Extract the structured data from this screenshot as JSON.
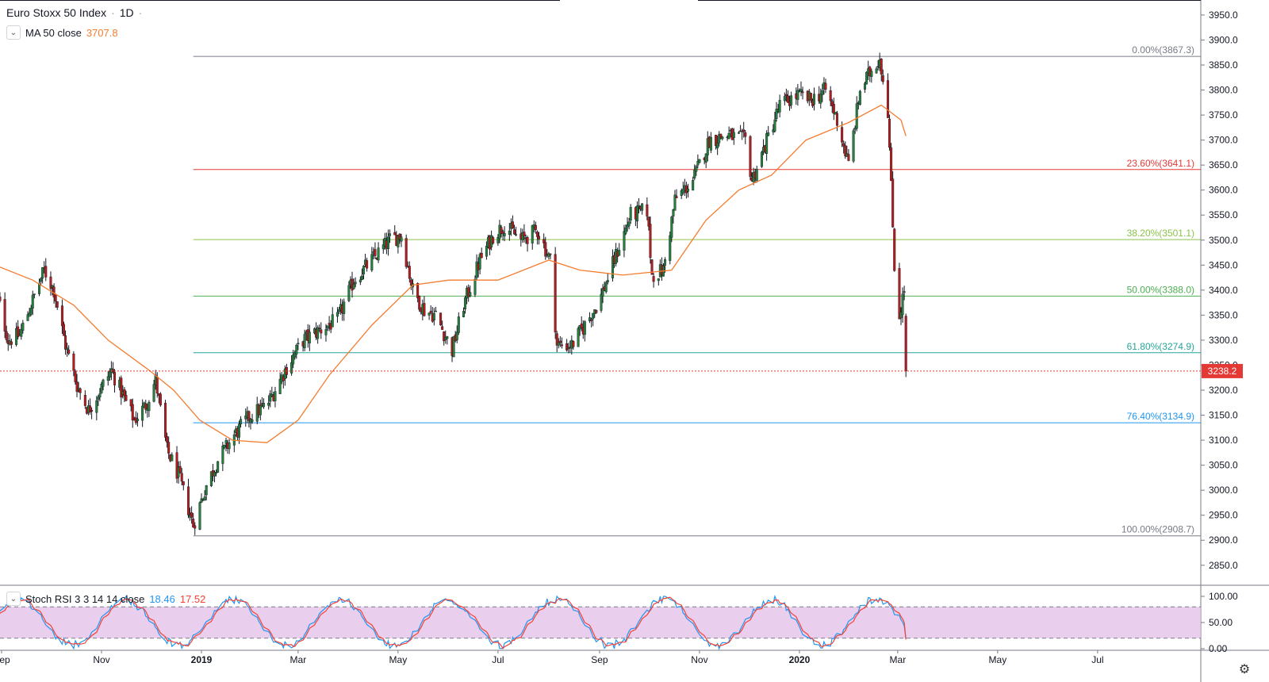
{
  "header": {
    "symbol": "Euro Stoxx 50 Index",
    "separator": "·",
    "interval": "1D",
    "collapse_icon": "chevron-down-icon"
  },
  "ma_legend": {
    "label": "MA 50 close",
    "value": "3707.8",
    "color": "#f57c2f"
  },
  "rsi_legend": {
    "label": "Stoch RSI 3 3 14 14 close",
    "k_value": "18.46",
    "d_value": "17.52",
    "k_color": "#2196f3",
    "d_color": "#f44336"
  },
  "last_price": {
    "value": "3238.2",
    "color": "#e53935"
  },
  "settings_icon": "gear-icon",
  "chart_data": {
    "type": "candlestick",
    "price_axis": {
      "ylim": [
        2810,
        3980
      ],
      "ticks": [
        2850,
        2900,
        2950,
        3000,
        3050,
        3100,
        3150,
        3200,
        3250,
        3300,
        3350,
        3400,
        3450,
        3500,
        3550,
        3600,
        3650,
        3700,
        3750,
        3800,
        3850,
        3900,
        3950
      ],
      "tick_labels": [
        "2850.0",
        "2900.0",
        "2950.0",
        "3000.0",
        "3050.0",
        "3100.0",
        "3150.0",
        "3200.0",
        "3250.0",
        "3300.0",
        "3350.0",
        "3400.0",
        "3450.0",
        "3500.0",
        "3550.0",
        "3600.0",
        "3650.0",
        "3700.0",
        "3750.0",
        "3800.0",
        "3850.0",
        "3900.0",
        "3950.0"
      ]
    },
    "time_axis": {
      "labels": [
        "Sep",
        "Nov",
        "2019",
        "Mar",
        "May",
        "Jul",
        "Sep",
        "Nov",
        "2020",
        "Mar",
        "May",
        "Jul"
      ],
      "dates": [
        "2018-09-01",
        "2018-11-01",
        "2019-01-01",
        "2019-03-01",
        "2019-05-01",
        "2019-07-01",
        "2019-09-01",
        "2019-11-01",
        "2020-01-01",
        "2020-03-01",
        "2020-05-01",
        "2020-07-01"
      ],
      "bold": [
        false,
        false,
        true,
        false,
        false,
        false,
        false,
        false,
        true,
        false,
        false,
        false
      ]
    },
    "price_path": [
      {
        "date": "2018-08-28",
        "price": 3410
      },
      {
        "date": "2018-09-05",
        "price": 3300
      },
      {
        "date": "2018-09-12",
        "price": 3310
      },
      {
        "date": "2018-09-20",
        "price": 3380
      },
      {
        "date": "2018-09-27",
        "price": 3440
      },
      {
        "date": "2018-10-03",
        "price": 3400
      },
      {
        "date": "2018-10-10",
        "price": 3290
      },
      {
        "date": "2018-10-17",
        "price": 3210
      },
      {
        "date": "2018-10-24",
        "price": 3160
      },
      {
        "date": "2018-10-31",
        "price": 3200
      },
      {
        "date": "2018-11-07",
        "price": 3240
      },
      {
        "date": "2018-11-14",
        "price": 3190
      },
      {
        "date": "2018-11-21",
        "price": 3140
      },
      {
        "date": "2018-11-28",
        "price": 3170
      },
      {
        "date": "2018-12-04",
        "price": 3220
      },
      {
        "date": "2018-12-11",
        "price": 3080
      },
      {
        "date": "2018-12-18",
        "price": 3030
      },
      {
        "date": "2018-12-27",
        "price": 2930
      },
      {
        "date": "2019-01-04",
        "price": 3010
      },
      {
        "date": "2019-01-11",
        "price": 3060
      },
      {
        "date": "2019-01-21",
        "price": 3110
      },
      {
        "date": "2019-01-31",
        "price": 3150
      },
      {
        "date": "2019-02-10",
        "price": 3170
      },
      {
        "date": "2019-02-21",
        "price": 3240
      },
      {
        "date": "2019-03-04",
        "price": 3300
      },
      {
        "date": "2019-03-14",
        "price": 3320
      },
      {
        "date": "2019-03-25",
        "price": 3340
      },
      {
        "date": "2019-04-04",
        "price": 3420
      },
      {
        "date": "2019-04-15",
        "price": 3460
      },
      {
        "date": "2019-04-26",
        "price": 3500
      },
      {
        "date": "2019-05-03",
        "price": 3510
      },
      {
        "date": "2019-05-10",
        "price": 3400
      },
      {
        "date": "2019-05-17",
        "price": 3360
      },
      {
        "date": "2019-05-24",
        "price": 3350
      },
      {
        "date": "2019-06-03",
        "price": 3280
      },
      {
        "date": "2019-06-10",
        "price": 3370
      },
      {
        "date": "2019-06-20",
        "price": 3460
      },
      {
        "date": "2019-06-28",
        "price": 3510
      },
      {
        "date": "2019-07-05",
        "price": 3530
      },
      {
        "date": "2019-07-15",
        "price": 3500
      },
      {
        "date": "2019-07-25",
        "price": 3520
      },
      {
        "date": "2019-08-02",
        "price": 3460
      },
      {
        "date": "2019-08-06",
        "price": 3290
      },
      {
        "date": "2019-08-15",
        "price": 3290
      },
      {
        "date": "2019-08-23",
        "price": 3330
      },
      {
        "date": "2019-09-01",
        "price": 3380
      },
      {
        "date": "2019-09-10",
        "price": 3460
      },
      {
        "date": "2019-09-20",
        "price": 3550
      },
      {
        "date": "2019-09-30",
        "price": 3560
      },
      {
        "date": "2019-10-03",
        "price": 3430
      },
      {
        "date": "2019-10-10",
        "price": 3440
      },
      {
        "date": "2019-10-17",
        "price": 3580
      },
      {
        "date": "2019-10-28",
        "price": 3620
      },
      {
        "date": "2019-11-07",
        "price": 3700
      },
      {
        "date": "2019-11-18",
        "price": 3710
      },
      {
        "date": "2019-11-29",
        "price": 3700
      },
      {
        "date": "2019-12-03",
        "price": 3620
      },
      {
        "date": "2019-12-10",
        "price": 3680
      },
      {
        "date": "2019-12-20",
        "price": 3770
      },
      {
        "date": "2019-12-31",
        "price": 3790
      },
      {
        "date": "2020-01-08",
        "price": 3780
      },
      {
        "date": "2020-01-17",
        "price": 3800
      },
      {
        "date": "2020-01-24",
        "price": 3740
      },
      {
        "date": "2020-01-31",
        "price": 3650
      },
      {
        "date": "2020-02-07",
        "price": 3800
      },
      {
        "date": "2020-02-14",
        "price": 3840
      },
      {
        "date": "2020-02-19",
        "price": 3865
      },
      {
        "date": "2020-02-24",
        "price": 3760
      },
      {
        "date": "2020-02-28",
        "price": 3450
      },
      {
        "date": "2020-03-02",
        "price": 3350
      },
      {
        "date": "2020-03-05",
        "price": 3400
      },
      {
        "date": "2020-03-06",
        "price": 3238
      }
    ],
    "ma50_path": [
      {
        "date": "2018-08-28",
        "price": 3450
      },
      {
        "date": "2018-09-20",
        "price": 3420
      },
      {
        "date": "2018-10-15",
        "price": 3370
      },
      {
        "date": "2018-11-05",
        "price": 3300
      },
      {
        "date": "2018-11-30",
        "price": 3240
      },
      {
        "date": "2018-12-15",
        "price": 3200
      },
      {
        "date": "2018-12-31",
        "price": 3140
      },
      {
        "date": "2019-01-20",
        "price": 3100
      },
      {
        "date": "2019-02-10",
        "price": 3095
      },
      {
        "date": "2019-03-01",
        "price": 3140
      },
      {
        "date": "2019-03-20",
        "price": 3230
      },
      {
        "date": "2019-04-15",
        "price": 3330
      },
      {
        "date": "2019-05-10",
        "price": 3410
      },
      {
        "date": "2019-06-01",
        "price": 3420
      },
      {
        "date": "2019-07-01",
        "price": 3420
      },
      {
        "date": "2019-08-01",
        "price": 3460
      },
      {
        "date": "2019-08-20",
        "price": 3440
      },
      {
        "date": "2019-09-15",
        "price": 3430
      },
      {
        "date": "2019-10-15",
        "price": 3440
      },
      {
        "date": "2019-11-05",
        "price": 3540
      },
      {
        "date": "2019-11-25",
        "price": 3600
      },
      {
        "date": "2019-12-15",
        "price": 3630
      },
      {
        "date": "2020-01-05",
        "price": 3700
      },
      {
        "date": "2020-01-31",
        "price": 3735
      },
      {
        "date": "2020-02-20",
        "price": 3770
      },
      {
        "date": "2020-03-03",
        "price": 3740
      },
      {
        "date": "2020-03-06",
        "price": 3708
      }
    ],
    "fibonacci": {
      "start_date": "2018-12-27",
      "end_date": "2020-03-09",
      "levels": [
        {
          "label": "0.00%(3867.3)",
          "price": 3867.3,
          "color": "#787b86"
        },
        {
          "label": "23.60%(3641.1)",
          "price": 3641.1,
          "color": "#e53935"
        },
        {
          "label": "38.20%(3501.1)",
          "price": 3501.1,
          "color": "#8bc34a"
        },
        {
          "label": "50.00%(3388.0)",
          "price": 3388.0,
          "color": "#4caf50"
        },
        {
          "label": "61.80%(3274.9)",
          "price": 3274.9,
          "color": "#26a69a"
        },
        {
          "label": "76.40%(3134.9)",
          "price": 3134.9,
          "color": "#2196f3"
        },
        {
          "label": "100.00%(2908.7)",
          "price": 2908.7,
          "color": "#787b86"
        }
      ]
    },
    "candle_colors": {
      "up": "#26803b",
      "down": "#b71c1c"
    },
    "stoch_rsi": {
      "ylim": [
        0,
        100
      ],
      "ticks": [
        0,
        50,
        100
      ],
      "tick_labels": [
        "0.00",
        "50.00",
        "100.00"
      ],
      "band": [
        20,
        80
      ],
      "band_color": "#e1bee7"
    }
  }
}
